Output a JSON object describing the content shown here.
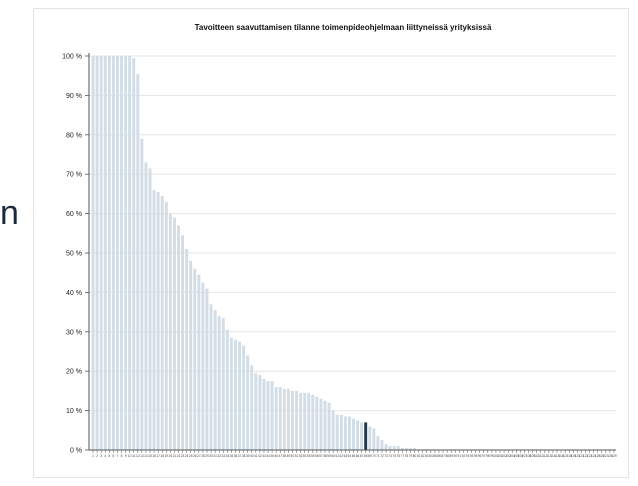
{
  "left_edge_glyph": "n",
  "chart_data": {
    "type": "bar",
    "title": "Tavoitteen saavuttamisen tilanne toimenpideohjelmaan liittyneissä yrityksissä",
    "xlabel": "",
    "ylabel": "",
    "ylim": [
      0,
      100
    ],
    "y_ticks": [
      "0 %",
      "10 %",
      "20 %",
      "30 %",
      "40 %",
      "50 %",
      "60 %",
      "70 %",
      "80 %",
      "90 %",
      "100 %"
    ],
    "grid": true,
    "legend": "none",
    "bar_color": "#d2dde6",
    "highlight_color": "#243746",
    "highlight_index": 67,
    "values": [
      100,
      100,
      100,
      100,
      100,
      100,
      100,
      100,
      100,
      100,
      99.5,
      95.5,
      79,
      73,
      71.5,
      66,
      65.5,
      64.5,
      63,
      60,
      59,
      57,
      54.5,
      51,
      48,
      46,
      44.5,
      42.5,
      41,
      37,
      35.5,
      34,
      33.5,
      30.5,
      28.5,
      28,
      27.5,
      26.5,
      24,
      21.5,
      19.5,
      19,
      18,
      17.5,
      17.5,
      16,
      16,
      15.5,
      15.5,
      15,
      15,
      14.5,
      14.5,
      14.5,
      14,
      13.5,
      13,
      12.5,
      12,
      10,
      9,
      9,
      8.5,
      8.5,
      8,
      7.5,
      7,
      7,
      6,
      5.5,
      3.5,
      2.5,
      1.5,
      1,
      1,
      1,
      0.5,
      0.5,
      0.5,
      0.5,
      0,
      0,
      0,
      0,
      0,
      0,
      0,
      0,
      0,
      0,
      0,
      0,
      0,
      0,
      0,
      0,
      0,
      0,
      0,
      0,
      0,
      0,
      0,
      0,
      0,
      0,
      0,
      0,
      0,
      0,
      0,
      0,
      0,
      0,
      0,
      0,
      0,
      0,
      0,
      0,
      0,
      0,
      0,
      0,
      0,
      0,
      0,
      0,
      0
    ]
  }
}
